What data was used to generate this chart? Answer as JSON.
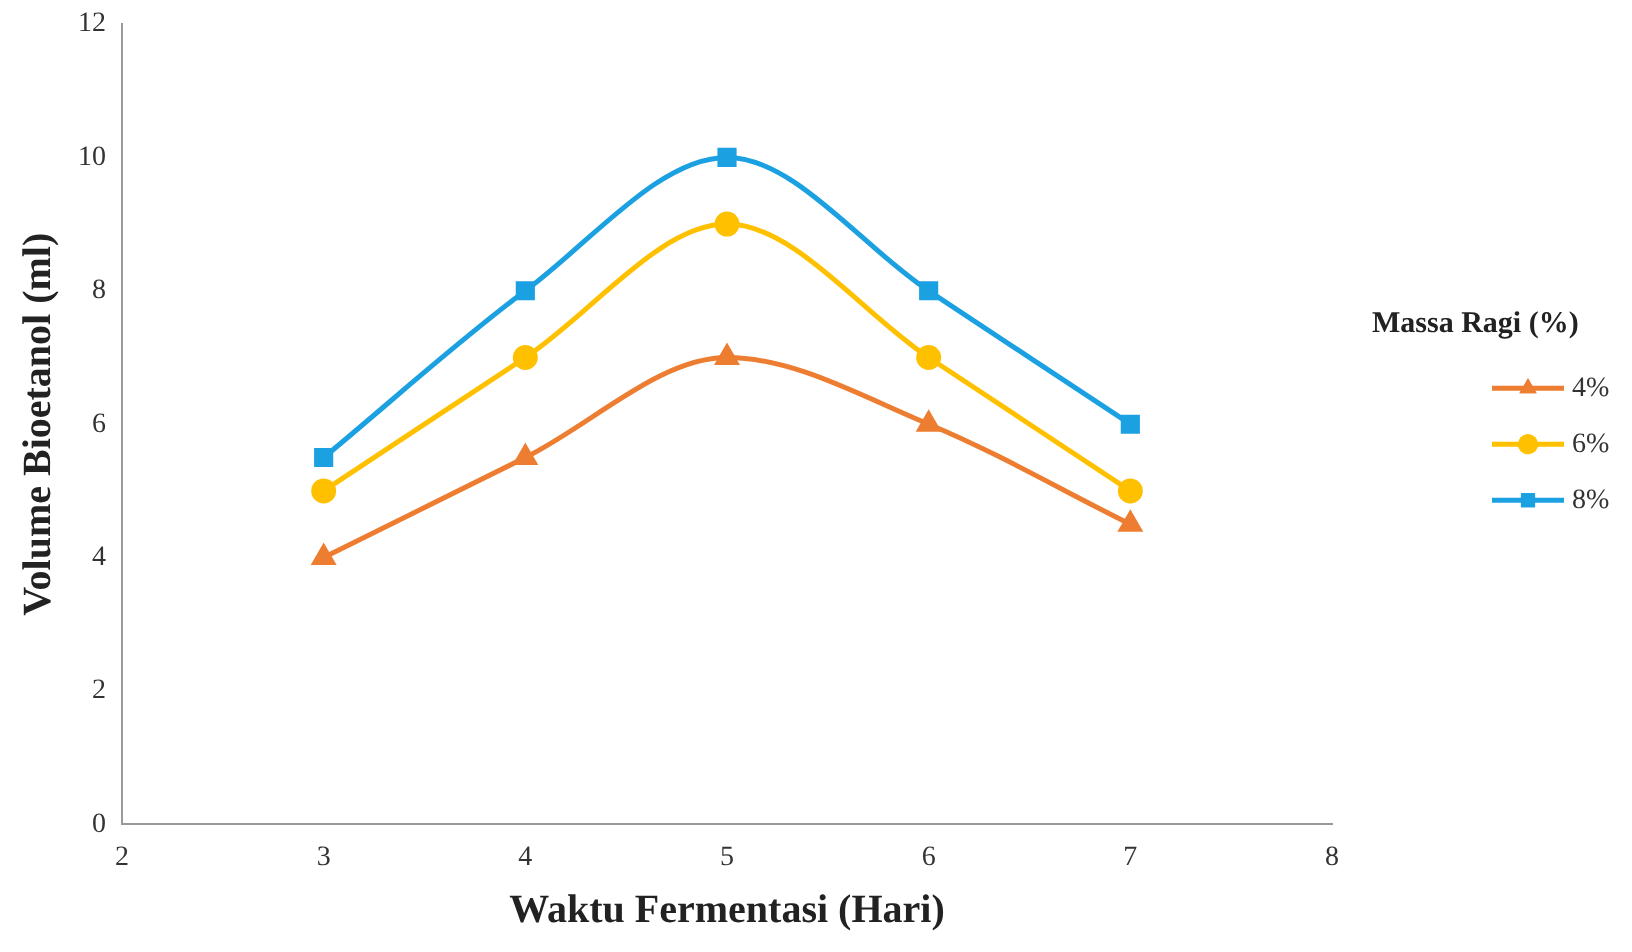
{
  "chart_data": {
    "type": "line",
    "xlabel": "Waktu Fermentasi (Hari)",
    "ylabel": "Volume Bioetanol (ml)",
    "legend_title": "Massa Ragi (%)",
    "x": [
      3,
      4,
      5,
      6,
      7
    ],
    "series": [
      {
        "name": "4%",
        "color": "#ed7d31",
        "marker": "triangle",
        "values": [
          4,
          5.5,
          7,
          6,
          4.5
        ]
      },
      {
        "name": "6%",
        "color": "#ffc000",
        "marker": "circle",
        "values": [
          5,
          7,
          9,
          7,
          5
        ]
      },
      {
        "name": "8%",
        "color": "#1ba1e2",
        "marker": "square",
        "values": [
          5.5,
          8,
          10,
          8,
          6
        ]
      }
    ],
    "xlim": [
      2,
      8
    ],
    "xticks": [
      2,
      3,
      4,
      5,
      6,
      7,
      8
    ],
    "ylim": [
      0,
      12
    ],
    "yticks": [
      0,
      2,
      4,
      6,
      8,
      10,
      12
    ],
    "grid": false,
    "legend": "right",
    "line_style": "solid"
  }
}
